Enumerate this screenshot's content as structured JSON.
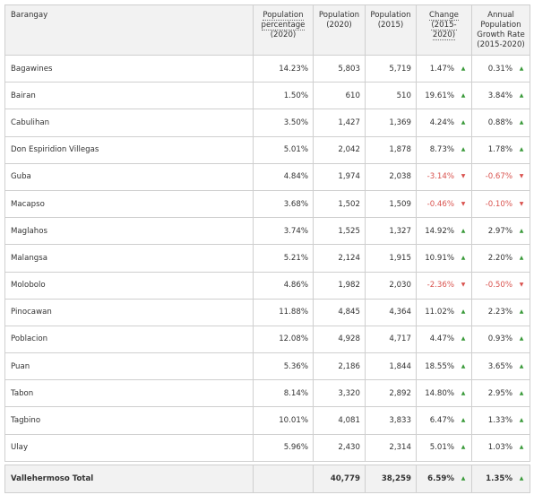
{
  "headers": {
    "barangay": "Barangay",
    "pct": [
      "Population",
      "percentage",
      "(2020)"
    ],
    "pop2020": [
      "Population",
      "(2020)"
    ],
    "pop2015": [
      "Population",
      "(2015)"
    ],
    "change": [
      "Change",
      "(2015-2020)"
    ],
    "growth": [
      "Annual",
      "Population",
      "Growth Rate",
      "(2015-2020)"
    ]
  },
  "rows": [
    {
      "name": "Bagawines",
      "pct": "14.23%",
      "pop2020": "5,803",
      "pop2015": "5,719",
      "change": "1.47%",
      "change_dir": "up",
      "growth": "0.31%",
      "growth_dir": "up"
    },
    {
      "name": "Bairan",
      "pct": "1.50%",
      "pop2020": "610",
      "pop2015": "510",
      "change": "19.61%",
      "change_dir": "up",
      "growth": "3.84%",
      "growth_dir": "up"
    },
    {
      "name": "Cabulihan",
      "pct": "3.50%",
      "pop2020": "1,427",
      "pop2015": "1,369",
      "change": "4.24%",
      "change_dir": "up",
      "growth": "0.88%",
      "growth_dir": "up"
    },
    {
      "name": "Don Espiridion Villegas",
      "pct": "5.01%",
      "pop2020": "2,042",
      "pop2015": "1,878",
      "change": "8.73%",
      "change_dir": "up",
      "growth": "1.78%",
      "growth_dir": "up"
    },
    {
      "name": "Guba",
      "pct": "4.84%",
      "pop2020": "1,974",
      "pop2015": "2,038",
      "change": "-3.14%",
      "change_dir": "down",
      "growth": "-0.67%",
      "growth_dir": "down"
    },
    {
      "name": "Macapso",
      "pct": "3.68%",
      "pop2020": "1,502",
      "pop2015": "1,509",
      "change": "-0.46%",
      "change_dir": "down",
      "growth": "-0.10%",
      "growth_dir": "down"
    },
    {
      "name": "Maglahos",
      "pct": "3.74%",
      "pop2020": "1,525",
      "pop2015": "1,327",
      "change": "14.92%",
      "change_dir": "up",
      "growth": "2.97%",
      "growth_dir": "up"
    },
    {
      "name": "Malangsa",
      "pct": "5.21%",
      "pop2020": "2,124",
      "pop2015": "1,915",
      "change": "10.91%",
      "change_dir": "up",
      "growth": "2.20%",
      "growth_dir": "up"
    },
    {
      "name": "Molobolo",
      "pct": "4.86%",
      "pop2020": "1,982",
      "pop2015": "2,030",
      "change": "-2.36%",
      "change_dir": "down",
      "growth": "-0.50%",
      "growth_dir": "down"
    },
    {
      "name": "Pinocawan",
      "pct": "11.88%",
      "pop2020": "4,845",
      "pop2015": "4,364",
      "change": "11.02%",
      "change_dir": "up",
      "growth": "2.23%",
      "growth_dir": "up"
    },
    {
      "name": "Poblacion",
      "pct": "12.08%",
      "pop2020": "4,928",
      "pop2015": "4,717",
      "change": "4.47%",
      "change_dir": "up",
      "growth": "0.93%",
      "growth_dir": "up"
    },
    {
      "name": "Puan",
      "pct": "5.36%",
      "pop2020": "2,186",
      "pop2015": "1,844",
      "change": "18.55%",
      "change_dir": "up",
      "growth": "3.65%",
      "growth_dir": "up"
    },
    {
      "name": "Tabon",
      "pct": "8.14%",
      "pop2020": "3,320",
      "pop2015": "2,892",
      "change": "14.80%",
      "change_dir": "up",
      "growth": "2.95%",
      "growth_dir": "up"
    },
    {
      "name": "Tagbino",
      "pct": "10.01%",
      "pop2020": "4,081",
      "pop2015": "3,833",
      "change": "6.47%",
      "change_dir": "up",
      "growth": "1.33%",
      "growth_dir": "up"
    },
    {
      "name": "Ulay",
      "pct": "5.96%",
      "pop2020": "2,430",
      "pop2015": "2,314",
      "change": "5.01%",
      "change_dir": "up",
      "growth": "1.03%",
      "growth_dir": "up"
    }
  ],
  "total": {
    "name": "Vallehermoso Total",
    "pct": "",
    "pop2020": "40,779",
    "pop2015": "38,259",
    "change": "6.59%",
    "change_dir": "up",
    "growth": "1.35%",
    "growth_dir": "up"
  },
  "colors": {
    "up": "#3a9a3a",
    "down": "#d9534f",
    "header_bg": "#f2f2f2"
  },
  "icons": {
    "up": "triangle-up-icon",
    "down": "triangle-down-icon"
  }
}
